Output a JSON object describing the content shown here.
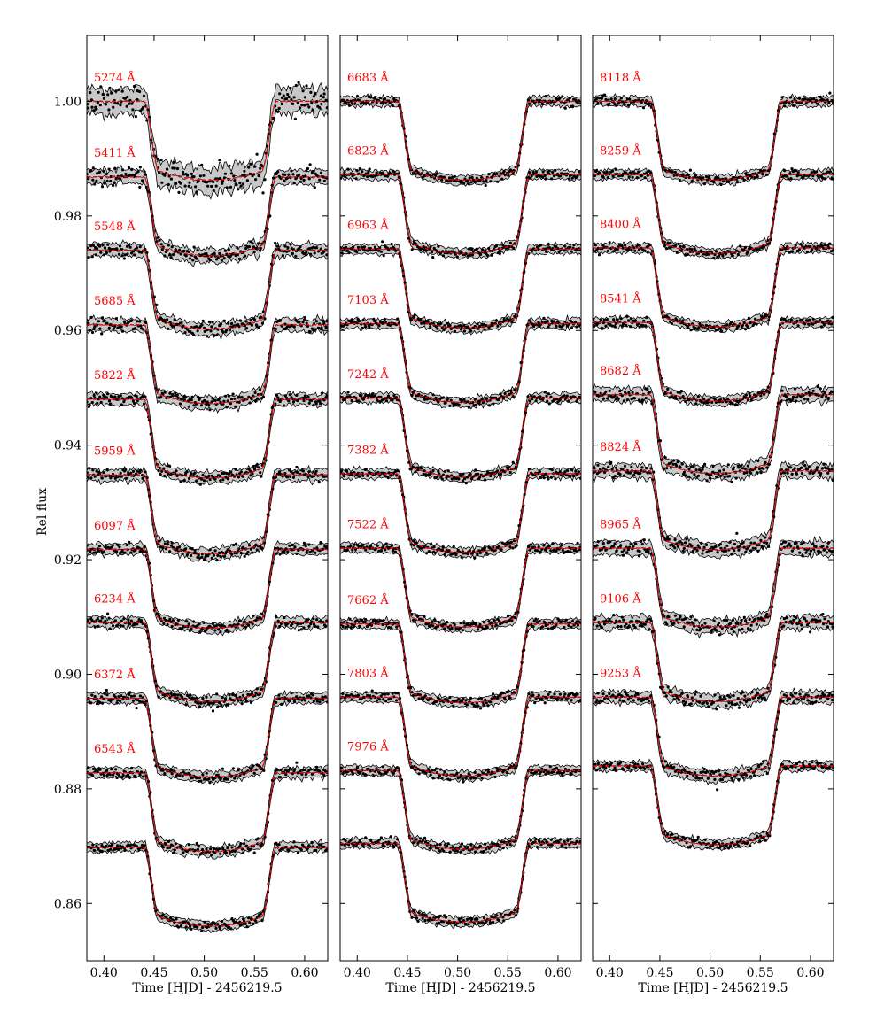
{
  "chart_data": {
    "type": "line",
    "ylabel": "Rel flux",
    "xlabel": "Time [HJD] - 2456219.5",
    "xlim": [
      0.383,
      0.623
    ],
    "ylim": [
      0.85,
      1.0115
    ],
    "xticks": [
      0.4,
      0.45,
      0.5,
      0.55,
      0.6
    ],
    "xtick_labels": [
      "0.40",
      "0.45",
      "0.50",
      "0.55",
      "0.60"
    ],
    "yticks": [
      0.86,
      0.88,
      0.9,
      0.92,
      0.94,
      0.96,
      0.98,
      1.0
    ],
    "ytick_labels": [
      "0.86",
      "0.88",
      "0.90",
      "0.92",
      "0.94",
      "0.96",
      "0.98",
      "1.00"
    ],
    "grid": false,
    "model_color": "#ff0000",
    "band_color": "#c8c8c8",
    "label_color": "#ff0000",
    "transit": {
      "ingress_start": 0.44,
      "ingress_end": 0.455,
      "egress_start": 0.557,
      "egress_end": 0.572,
      "depth": 0.0135
    },
    "panels": [
      {
        "curves": [
          {
            "label": "5274 Å",
            "baseline": 1.0,
            "noise": 0.0012,
            "band": 0.0022
          },
          {
            "label": "5411 Å",
            "baseline": 0.9868,
            "noise": 0.0007,
            "band": 0.0012
          },
          {
            "label": "5548 Å",
            "baseline": 0.974,
            "noise": 0.0006,
            "band": 0.0011
          },
          {
            "label": "5685 Å",
            "baseline": 0.961,
            "noise": 0.0006,
            "band": 0.0011
          },
          {
            "label": "5822 Å",
            "baseline": 0.948,
            "noise": 0.0005,
            "band": 0.001
          },
          {
            "label": "5959 Å",
            "baseline": 0.9348,
            "noise": 0.0005,
            "band": 0.001
          },
          {
            "label": "6097 Å",
            "baseline": 0.9218,
            "noise": 0.0005,
            "band": 0.0009
          },
          {
            "label": "6234 Å",
            "baseline": 0.909,
            "noise": 0.0005,
            "band": 0.0009
          },
          {
            "label": "6372 Å",
            "baseline": 0.8958,
            "noise": 0.0005,
            "band": 0.0009
          },
          {
            "label": "6543 Å",
            "baseline": 0.8828,
            "noise": 0.0005,
            "band": 0.0009
          },
          {
            "label": "",
            "baseline": 0.8698,
            "noise": 0.0004,
            "band": 0.0008
          }
        ]
      },
      {
        "curves": [
          {
            "label": "6683 Å",
            "baseline": 1.0,
            "noise": 0.0004,
            "band": 0.0008
          },
          {
            "label": "6823 Å",
            "baseline": 0.9872,
            "noise": 0.0004,
            "band": 0.0008
          },
          {
            "label": "6963 Å",
            "baseline": 0.9742,
            "noise": 0.0004,
            "band": 0.0008
          },
          {
            "label": "7103 Å",
            "baseline": 0.9612,
            "noise": 0.0004,
            "band": 0.0008
          },
          {
            "label": "7242 Å",
            "baseline": 0.9482,
            "noise": 0.0004,
            "band": 0.0008
          },
          {
            "label": "7382 Å",
            "baseline": 0.935,
            "noise": 0.0004,
            "band": 0.0008
          },
          {
            "label": "7522 Å",
            "baseline": 0.922,
            "noise": 0.0004,
            "band": 0.0008
          },
          {
            "label": "7662 Å",
            "baseline": 0.9088,
            "noise": 0.0004,
            "band": 0.0008
          },
          {
            "label": "7803 Å",
            "baseline": 0.896,
            "noise": 0.0004,
            "band": 0.0008
          },
          {
            "label": "7976 Å",
            "baseline": 0.8832,
            "noise": 0.0004,
            "band": 0.0008
          },
          {
            "label": "",
            "baseline": 0.8705,
            "noise": 0.0004,
            "band": 0.0008
          }
        ]
      },
      {
        "curves": [
          {
            "label": "8118 Å",
            "baseline": 1.0,
            "noise": 0.0004,
            "band": 0.0008
          },
          {
            "label": "8259 Å",
            "baseline": 0.9872,
            "noise": 0.0004,
            "band": 0.0008
          },
          {
            "label": "8400 Å",
            "baseline": 0.9744,
            "noise": 0.0004,
            "band": 0.0008
          },
          {
            "label": "8541 Å",
            "baseline": 0.9614,
            "noise": 0.0004,
            "band": 0.0008
          },
          {
            "label": "8682 Å",
            "baseline": 0.9488,
            "noise": 0.0006,
            "band": 0.0012
          },
          {
            "label": "8824 Å",
            "baseline": 0.9355,
            "noise": 0.0006,
            "band": 0.0012
          },
          {
            "label": "8965 Å",
            "baseline": 0.922,
            "noise": 0.0006,
            "band": 0.0012
          },
          {
            "label": "9106 Å",
            "baseline": 0.909,
            "noise": 0.0006,
            "band": 0.0011
          },
          {
            "label": "9253 Å",
            "baseline": 0.896,
            "noise": 0.0005,
            "band": 0.001
          },
          {
            "label": "",
            "baseline": 0.884,
            "noise": 0.0004,
            "band": 0.0008
          }
        ]
      }
    ]
  }
}
